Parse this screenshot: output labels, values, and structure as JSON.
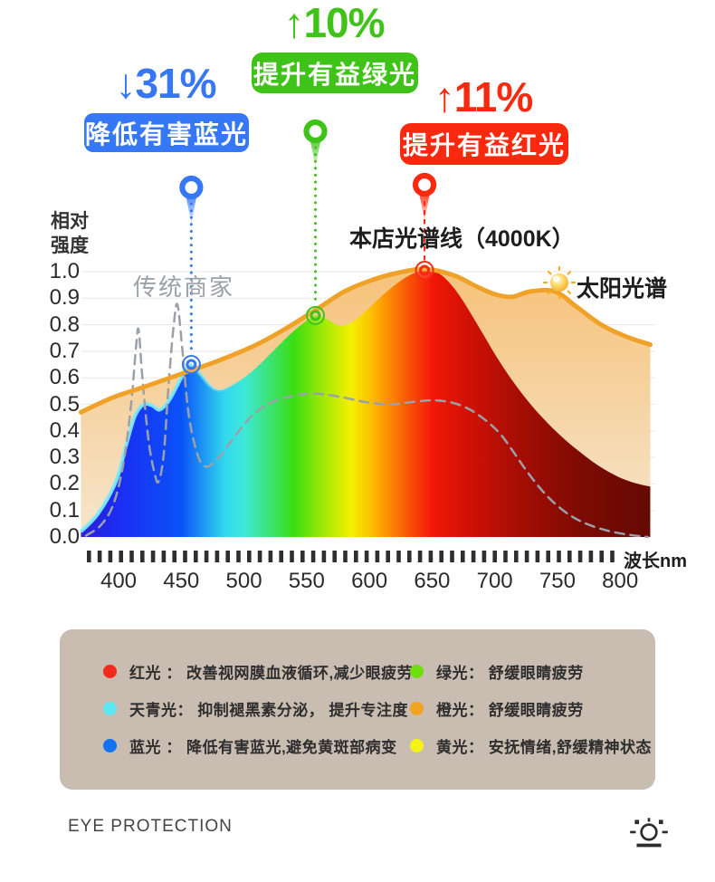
{
  "annotations": {
    "blue": {
      "stat": "↓31%",
      "label": "降低有害蓝光",
      "color": "#3577f5"
    },
    "green": {
      "stat": "↑10%",
      "label": "提升有益绿光",
      "color": "#3fc318"
    },
    "red": {
      "stat": "↑11%",
      "label": "提升有益红光",
      "color": "#f8290f"
    }
  },
  "chart_data": {
    "type": "area",
    "title": "本店光谱线（4000K）",
    "y_title": "相对\n强度",
    "x_unit": "波长nm",
    "xlim": [
      370,
      824
    ],
    "ylim": [
      0,
      1.0
    ],
    "x_ticks": [
      400,
      450,
      500,
      550,
      600,
      650,
      700,
      750,
      800
    ],
    "y_ticks": [
      1.0,
      0.9,
      0.8,
      0.7,
      0.6,
      0.5,
      0.4,
      0.3,
      0.2,
      0.1,
      0.0
    ],
    "grid": true,
    "series": [
      {
        "name": "太阳光谱",
        "role": "sun",
        "line_color": "#efa227",
        "points": [
          [
            370,
            0.47
          ],
          [
            395,
            0.525
          ],
          [
            420,
            0.565
          ],
          [
            450,
            0.615
          ],
          [
            480,
            0.665
          ],
          [
            510,
            0.725
          ],
          [
            535,
            0.79
          ],
          [
            560,
            0.865
          ],
          [
            580,
            0.925
          ],
          [
            600,
            0.965
          ],
          [
            622,
            0.995
          ],
          [
            645,
            1.01
          ],
          [
            668,
            0.985
          ],
          [
            685,
            0.945
          ],
          [
            700,
            0.915
          ],
          [
            714,
            0.905
          ],
          [
            728,
            0.925
          ],
          [
            748,
            0.925
          ],
          [
            766,
            0.865
          ],
          [
            785,
            0.8
          ],
          [
            805,
            0.755
          ],
          [
            824,
            0.725
          ]
        ]
      },
      {
        "name": "本店光谱线（4000K）",
        "role": "store",
        "points": [
          [
            370,
            0.02
          ],
          [
            384,
            0.09
          ],
          [
            398,
            0.21
          ],
          [
            406,
            0.345
          ],
          [
            413,
            0.455
          ],
          [
            420,
            0.5
          ],
          [
            427,
            0.495
          ],
          [
            433,
            0.48
          ],
          [
            441,
            0.52
          ],
          [
            450,
            0.6
          ],
          [
            457,
            0.648
          ],
          [
            465,
            0.615
          ],
          [
            473,
            0.57
          ],
          [
            481,
            0.553
          ],
          [
            493,
            0.578
          ],
          [
            508,
            0.63
          ],
          [
            522,
            0.695
          ],
          [
            537,
            0.765
          ],
          [
            550,
            0.815
          ],
          [
            558,
            0.835
          ],
          [
            567,
            0.818
          ],
          [
            577,
            0.795
          ],
          [
            588,
            0.815
          ],
          [
            600,
            0.865
          ],
          [
            614,
            0.925
          ],
          [
            628,
            0.975
          ],
          [
            640,
            1.002
          ],
          [
            649,
            1.005
          ],
          [
            658,
            0.985
          ],
          [
            668,
            0.935
          ],
          [
            678,
            0.865
          ],
          [
            690,
            0.77
          ],
          [
            702,
            0.675
          ],
          [
            714,
            0.59
          ],
          [
            726,
            0.515
          ],
          [
            739,
            0.445
          ],
          [
            753,
            0.38
          ],
          [
            768,
            0.32
          ],
          [
            783,
            0.268
          ],
          [
            798,
            0.228
          ],
          [
            812,
            0.203
          ],
          [
            824,
            0.19
          ]
        ]
      },
      {
        "name": "传统商家",
        "role": "traditional",
        "line_color": "#9ba1a9",
        "points": [
          [
            374,
            0.005
          ],
          [
            386,
            0.045
          ],
          [
            396,
            0.125
          ],
          [
            404,
            0.28
          ],
          [
            410,
            0.5
          ],
          [
            414,
            0.72
          ],
          [
            416,
            0.78
          ],
          [
            419,
            0.6
          ],
          [
            424,
            0.36
          ],
          [
            429,
            0.235
          ],
          [
            432,
            0.21
          ],
          [
            436,
            0.31
          ],
          [
            440,
            0.58
          ],
          [
            444,
            0.8
          ],
          [
            447,
            0.875
          ],
          [
            451,
            0.7
          ],
          [
            456,
            0.46
          ],
          [
            463,
            0.31
          ],
          [
            470,
            0.265
          ],
          [
            480,
            0.3
          ],
          [
            492,
            0.375
          ],
          [
            505,
            0.45
          ],
          [
            520,
            0.503
          ],
          [
            540,
            0.533
          ],
          [
            558,
            0.54
          ],
          [
            578,
            0.527
          ],
          [
            598,
            0.508
          ],
          [
            618,
            0.5
          ],
          [
            636,
            0.51
          ],
          [
            652,
            0.515
          ],
          [
            667,
            0.505
          ],
          [
            681,
            0.478
          ],
          [
            694,
            0.435
          ],
          [
            705,
            0.385
          ],
          [
            715,
            0.32
          ],
          [
            725,
            0.252
          ],
          [
            736,
            0.185
          ],
          [
            747,
            0.13
          ],
          [
            760,
            0.082
          ],
          [
            774,
            0.048
          ],
          [
            790,
            0.024
          ],
          [
            806,
            0.009
          ],
          [
            822,
            0.0
          ]
        ]
      }
    ],
    "markers": [
      {
        "id": "blue",
        "nm": 458,
        "value": 0.65,
        "pin_y": 207,
        "color": "#3577f5",
        "line": "dot",
        "change": "-31%"
      },
      {
        "id": "green",
        "nm": 557,
        "value": 0.835,
        "pin_y": 145,
        "color": "#3fc318",
        "line": "dot",
        "change": "+10%"
      },
      {
        "id": "red",
        "nm": 644,
        "value": 1.005,
        "pin_y": 204,
        "color": "#f8290f",
        "line": "dash",
        "change": "+11%"
      }
    ]
  },
  "legend": {
    "panel_bg": "#c9bcb0",
    "items": [
      {
        "color": "#f5281e",
        "text": "红光 ： 改善视网膜血液循环,减少眼疲劳"
      },
      {
        "color": "#5fe8f2",
        "text": "天青光： 抑制褪黑素分泌， 提升专注度"
      },
      {
        "color": "#1372f4",
        "text": "蓝光 ： 降低有害蓝光,避免黄斑部病变"
      },
      {
        "color": "#6ede0c",
        "text": "绿光： 舒缓眼睛疲劳"
      },
      {
        "color": "#f0a41f",
        "text": "橙光： 舒缓眼睛疲劳"
      },
      {
        "color": "#f6f218",
        "text": "黄光： 安抚情绪,舒缓精神状态"
      }
    ]
  },
  "footer": {
    "brand": "EYE PROTECTION"
  }
}
